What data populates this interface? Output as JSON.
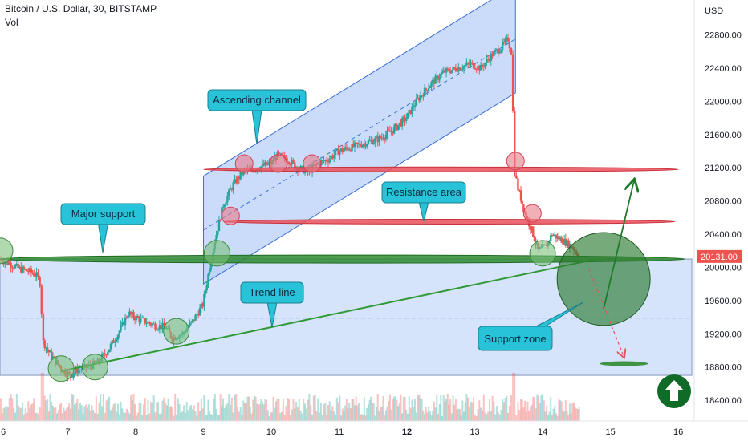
{
  "header": {
    "title": "Bitcoin / U.S. Dollar, 30, BITSTAMP",
    "indicator": "Vol"
  },
  "colors": {
    "up": "#26a69a",
    "down": "#ef5350",
    "channel_fill": "#b3cdf7",
    "channel_line": "#3d6fd6",
    "resistance": "#e8505b",
    "support": "#2e8b30",
    "circle_red": "#e87a86",
    "circle_green": "#7bbf7b",
    "callout_bg": "#28c3d8",
    "price_badge": "#ef5350",
    "arrow_badge": "#0f6b26"
  },
  "chart_data": {
    "type": "candlestick",
    "symbol": "Bitcoin / U.S. Dollar",
    "interval": "30",
    "exchange": "BITSTAMP",
    "y_axis_title": "USD",
    "y_ticks": [
      18400,
      18800,
      19200,
      19600,
      20000,
      20400,
      20800,
      21200,
      21600,
      22000,
      22400,
      22800
    ],
    "y_range": [
      18150,
      23220
    ],
    "x_ticks": [
      "6",
      "7",
      "8",
      "9",
      "10",
      "11",
      "12",
      "13",
      "14",
      "15",
      "16"
    ],
    "x_range_days": [
      6.0,
      16.2
    ],
    "last_price_label": "20131.00",
    "ohlc_path": [
      [
        6.0,
        20100
      ],
      [
        6.15,
        20050
      ],
      [
        6.3,
        19980
      ],
      [
        6.45,
        19950
      ],
      [
        6.55,
        19900
      ],
      [
        6.6,
        19820
      ],
      [
        6.65,
        19100
      ],
      [
        6.75,
        18950
      ],
      [
        6.85,
        18850
      ],
      [
        6.95,
        18750
      ],
      [
        7.05,
        18700
      ],
      [
        7.15,
        18760
      ],
      [
        7.3,
        18800
      ],
      [
        7.45,
        18850
      ],
      [
        7.6,
        19000
      ],
      [
        7.75,
        19200
      ],
      [
        7.9,
        19450
      ],
      [
        8.0,
        19400
      ],
      [
        8.15,
        19350
      ],
      [
        8.3,
        19300
      ],
      [
        8.45,
        19280
      ],
      [
        8.55,
        19150
      ],
      [
        8.7,
        19200
      ],
      [
        8.85,
        19350
      ],
      [
        9.0,
        19550
      ],
      [
        9.1,
        20000
      ],
      [
        9.2,
        20400
      ],
      [
        9.3,
        20750
      ],
      [
        9.45,
        21000
      ],
      [
        9.6,
        21150
      ],
      [
        9.8,
        21200
      ],
      [
        10.0,
        21250
      ],
      [
        10.1,
        21350
      ],
      [
        10.25,
        21300
      ],
      [
        10.4,
        21200
      ],
      [
        10.55,
        21150
      ],
      [
        10.7,
        21250
      ],
      [
        10.85,
        21300
      ],
      [
        11.0,
        21400
      ],
      [
        11.2,
        21450
      ],
      [
        11.4,
        21500
      ],
      [
        11.6,
        21550
      ],
      [
        11.8,
        21650
      ],
      [
        12.0,
        21800
      ],
      [
        12.15,
        22000
      ],
      [
        12.35,
        22200
      ],
      [
        12.55,
        22350
      ],
      [
        12.75,
        22400
      ],
      [
        12.95,
        22450
      ],
      [
        13.1,
        22400
      ],
      [
        13.25,
        22550
      ],
      [
        13.4,
        22650
      ],
      [
        13.5,
        22750
      ],
      [
        13.55,
        22600
      ],
      [
        13.6,
        21150
      ],
      [
        13.65,
        20950
      ],
      [
        13.75,
        20650
      ],
      [
        13.85,
        20450
      ],
      [
        13.95,
        20200
      ],
      [
        14.05,
        20250
      ],
      [
        14.15,
        20400
      ],
      [
        14.25,
        20350
      ],
      [
        14.35,
        20300
      ],
      [
        14.45,
        20250
      ],
      [
        14.55,
        20131
      ]
    ],
    "annotations": [
      {
        "label": "Ascending channel",
        "kind": "channel",
        "from": [
          9.0,
          20450
        ],
        "to": [
          13.6,
          22750
        ],
        "width_usd": 1300
      },
      {
        "label": "Resistance area",
        "kind": "horizontal",
        "price": 20550,
        "from_day": 9.3,
        "to_day": 15.95
      },
      {
        "label": "",
        "kind": "horizontal",
        "price": 21180,
        "from_day": 9.0,
        "to_day": 16.0
      },
      {
        "label": "Major support",
        "kind": "horizontal",
        "price": 20100,
        "from_day": 6.0,
        "to_day": 16.1
      },
      {
        "label": "Trend line",
        "kind": "line",
        "from": [
          6.9,
          18750
        ],
        "to": [
          14.8,
          20100
        ]
      },
      {
        "label": "Support zone",
        "kind": "circle",
        "center": [
          14.9,
          19860
        ],
        "radius_usd": 560
      },
      {
        "label": "",
        "kind": "projection-up",
        "from": [
          14.9,
          19500
        ],
        "to": [
          15.35,
          21050
        ]
      },
      {
        "label": "",
        "kind": "projection-down",
        "from": [
          14.65,
          20050
        ],
        "to": [
          15.2,
          18920
        ]
      }
    ],
    "range_box": {
      "price_top": 20100,
      "price_bottom": 18700,
      "from_day": 6.0,
      "to_day": 16.2
    },
    "dashed_level": 19390,
    "red_circles": [
      [
        9.4,
        20620
      ],
      [
        9.6,
        21250
      ],
      [
        10.1,
        21250
      ],
      [
        10.6,
        21250
      ],
      [
        13.6,
        21280
      ],
      [
        13.85,
        20650
      ]
    ],
    "green_circles": [
      [
        6.0,
        20200
      ],
      [
        6.9,
        18780
      ],
      [
        7.4,
        18800
      ],
      [
        8.6,
        19230
      ],
      [
        9.2,
        20170
      ],
      [
        14.0,
        20170
      ]
    ]
  },
  "callouts": {
    "ascending": "Ascending channel",
    "resistance": "Resistance area",
    "major_support": "Major support",
    "trend": "Trend line",
    "support_zone": "Support zone"
  }
}
